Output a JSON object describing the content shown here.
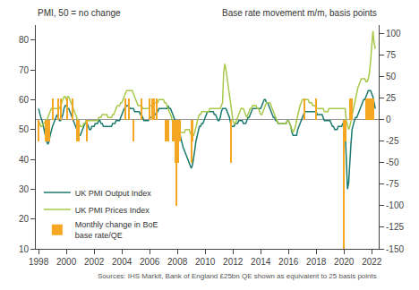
{
  "chart_data": {
    "type": "line",
    "ylabel": "PMI, 50 = no change",
    "y2label": "Base rate movement m/m, basis points",
    "annotations": [
      "Sources: IHS Markit, Bank of England £25bn QE shown as equivalent to 25 basis points"
    ],
    "legend": "lower left",
    "grid": false,
    "xlim": [
      1997.8,
      2022.5
    ],
    "xticks": [
      1998,
      2000,
      2002,
      2004,
      2006,
      2008,
      2010,
      2012,
      2014,
      2016,
      2018,
      2020,
      2022
    ],
    "ylim": [
      10,
      85
    ],
    "yticks": [
      10,
      20,
      30,
      40,
      50,
      60,
      70,
      80
    ],
    "y2lim": [
      -150,
      110
    ],
    "y2ticks": [
      -150,
      -125,
      -100,
      -75,
      -50,
      -25,
      0,
      25,
      50,
      75,
      100
    ],
    "x": [
      1998.0,
      1998.083,
      1998.167,
      1998.25,
      1998.333,
      1998.417,
      1998.5,
      1998.583,
      1998.667,
      1998.75,
      1998.833,
      1998.917,
      1999.0,
      1999.083,
      1999.167,
      1999.25,
      1999.333,
      1999.417,
      1999.5,
      1999.583,
      1999.667,
      1999.75,
      1999.833,
      1999.917,
      2000.0,
      2000.083,
      2000.167,
      2000.25,
      2000.333,
      2000.417,
      2000.5,
      2000.583,
      2000.667,
      2000.75,
      2000.833,
      2000.917,
      2001.0,
      2001.083,
      2001.167,
      2001.25,
      2001.333,
      2001.417,
      2001.5,
      2001.583,
      2001.667,
      2001.75,
      2001.833,
      2001.917,
      2002.0,
      2002.083,
      2002.167,
      2002.25,
      2002.333,
      2002.417,
      2002.5,
      2002.583,
      2002.667,
      2002.75,
      2002.833,
      2002.917,
      2003.0,
      2003.083,
      2003.167,
      2003.25,
      2003.333,
      2003.417,
      2003.5,
      2003.583,
      2003.667,
      2003.75,
      2003.833,
      2003.917,
      2004.0,
      2004.083,
      2004.167,
      2004.25,
      2004.333,
      2004.417,
      2004.5,
      2004.583,
      2004.667,
      2004.75,
      2004.833,
      2004.917,
      2005.0,
      2005.083,
      2005.167,
      2005.25,
      2005.333,
      2005.417,
      2005.5,
      2005.583,
      2005.667,
      2005.75,
      2005.833,
      2005.917,
      2006.0,
      2006.083,
      2006.167,
      2006.25,
      2006.333,
      2006.417,
      2006.5,
      2006.583,
      2006.667,
      2006.75,
      2006.833,
      2006.917,
      2007.0,
      2007.083,
      2007.167,
      2007.25,
      2007.333,
      2007.417,
      2007.5,
      2007.583,
      2007.667,
      2007.75,
      2007.833,
      2007.917,
      2008.0,
      2008.083,
      2008.167,
      2008.25,
      2008.333,
      2008.417,
      2008.5,
      2008.583,
      2008.667,
      2008.75,
      2008.833,
      2008.917,
      2009.0,
      2009.083,
      2009.167,
      2009.25,
      2009.333,
      2009.417,
      2009.5,
      2009.583,
      2009.667,
      2009.75,
      2009.833,
      2009.917,
      2010.0,
      2010.083,
      2010.167,
      2010.25,
      2010.333,
      2010.417,
      2010.5,
      2010.583,
      2010.667,
      2010.75,
      2010.833,
      2010.917,
      2011.0,
      2011.083,
      2011.167,
      2011.25,
      2011.333,
      2011.417,
      2011.5,
      2011.583,
      2011.667,
      2011.75,
      2011.833,
      2011.917,
      2012.0,
      2012.083,
      2012.167,
      2012.25,
      2012.333,
      2012.417,
      2012.5,
      2012.583,
      2012.667,
      2012.75,
      2012.833,
      2012.917,
      2013.0,
      2013.083,
      2013.167,
      2013.25,
      2013.333,
      2013.417,
      2013.5,
      2013.583,
      2013.667,
      2013.75,
      2013.833,
      2013.917,
      2014.0,
      2014.083,
      2014.167,
      2014.25,
      2014.333,
      2014.417,
      2014.5,
      2014.583,
      2014.667,
      2014.75,
      2014.833,
      2014.917,
      2015.0,
      2015.083,
      2015.167,
      2015.25,
      2015.333,
      2015.417,
      2015.5,
      2015.583,
      2015.667,
      2015.75,
      2015.833,
      2015.917,
      2016.0,
      2016.083,
      2016.167,
      2016.25,
      2016.333,
      2016.417,
      2016.5,
      2016.583,
      2016.667,
      2016.75,
      2016.833,
      2016.917,
      2017.0,
      2017.083,
      2017.167,
      2017.25,
      2017.333,
      2017.417,
      2017.5,
      2017.583,
      2017.667,
      2017.75,
      2017.833,
      2017.917,
      2018.0,
      2018.083,
      2018.167,
      2018.25,
      2018.333,
      2018.417,
      2018.5,
      2018.583,
      2018.667,
      2018.75,
      2018.833,
      2018.917,
      2019.0,
      2019.083,
      2019.167,
      2019.25,
      2019.333,
      2019.417,
      2019.5,
      2019.583,
      2019.667,
      2019.75,
      2019.833,
      2019.917,
      2020.0,
      2020.083,
      2020.167,
      2020.25,
      2020.333,
      2020.417,
      2020.5,
      2020.583,
      2020.667,
      2020.75,
      2020.833,
      2020.917,
      2021.0,
      2021.083,
      2021.167,
      2021.25,
      2021.333,
      2021.417,
      2021.5,
      2021.583,
      2021.667,
      2021.75,
      2021.833,
      2021.917,
      2022.0,
      2022.083,
      2022.167,
      2022.25
    ],
    "series": [
      {
        "name": "UK PMI Output Index",
        "color": "#1a7a6e",
        "type": "line",
        "values": [
          57,
          55,
          54,
          53,
          51,
          49,
          47,
          46,
          45,
          46,
          48,
          50,
          51,
          52,
          53,
          54,
          55,
          54,
          53,
          53,
          54,
          55,
          57,
          58,
          58,
          57,
          57,
          56,
          55,
          54,
          53,
          52,
          51,
          50,
          49,
          48,
          48,
          49,
          50,
          51,
          52,
          52,
          52,
          51,
          50,
          50,
          51,
          51,
          51,
          52,
          52,
          52,
          53,
          53,
          52,
          52,
          51,
          51,
          51,
          51,
          51,
          51,
          51,
          51,
          52,
          52,
          52,
          53,
          53,
          53,
          53,
          54,
          55,
          56,
          57,
          57,
          58,
          58,
          58,
          57,
          57,
          57,
          57,
          56,
          56,
          56,
          56,
          56,
          55,
          55,
          54,
          53,
          53,
          53,
          53,
          53,
          54,
          54,
          54,
          55,
          55,
          55,
          56,
          56,
          57,
          57,
          57,
          57,
          57,
          57,
          57,
          57,
          58,
          57,
          57,
          56,
          55,
          54,
          53,
          52,
          51,
          50,
          49,
          47,
          45,
          44,
          43,
          42,
          41,
          40,
          39,
          38,
          37,
          38,
          40,
          43,
          46,
          48,
          50,
          51,
          51,
          52,
          52,
          53,
          54,
          55,
          56,
          56,
          56,
          56,
          56,
          56,
          55,
          55,
          54,
          53,
          53,
          54,
          56,
          57,
          57,
          57,
          57,
          56,
          55,
          54,
          52,
          51,
          51,
          51,
          52,
          52,
          52,
          53,
          53,
          53,
          53,
          52,
          52,
          52,
          53,
          54,
          54,
          55,
          56,
          57,
          57,
          57,
          57,
          57,
          57,
          57,
          57,
          58,
          59,
          60,
          60,
          59,
          59,
          58,
          57,
          56,
          55,
          54,
          54,
          53,
          53,
          52,
          52,
          52,
          52,
          52,
          52,
          52,
          52,
          53,
          53,
          52,
          51,
          49,
          48,
          48,
          48,
          48,
          50,
          51,
          52,
          53,
          54,
          55,
          56,
          56,
          56,
          56,
          56,
          56,
          56,
          56,
          56,
          56,
          56,
          55,
          55,
          55,
          55,
          55,
          54,
          53,
          53,
          53,
          53,
          53,
          53,
          52,
          51,
          51,
          50,
          50,
          50,
          51,
          51,
          51,
          51,
          52,
          52,
          50,
          40,
          30,
          32,
          40,
          45,
          50,
          52,
          53,
          54,
          54,
          55,
          56,
          57,
          58,
          59,
          60,
          60,
          61,
          62,
          63,
          63,
          63,
          62,
          61,
          59,
          57
        ]
      },
      {
        "name": "UK PMI Prices Index",
        "color": "#a8c84a",
        "type": "line",
        "values": [
          53,
          52,
          51,
          51,
          52,
          52,
          53,
          53,
          54,
          55,
          56,
          57,
          57,
          57,
          57,
          57,
          57,
          57,
          57,
          58,
          59,
          60,
          61,
          61,
          60,
          61,
          61,
          60,
          59,
          58,
          57,
          56,
          55,
          54,
          53,
          52,
          51,
          51,
          51,
          52,
          52,
          53,
          53,
          53,
          53,
          53,
          53,
          53,
          53,
          53,
          53,
          53,
          54,
          54,
          54,
          55,
          55,
          55,
          55,
          55,
          54,
          54,
          54,
          54,
          55,
          55,
          56,
          57,
          58,
          58,
          58,
          59,
          59,
          60,
          61,
          62,
          63,
          63,
          63,
          63,
          63,
          63,
          62,
          61,
          60,
          59,
          58,
          58,
          58,
          58,
          57,
          57,
          57,
          57,
          57,
          57,
          58,
          58,
          58,
          59,
          59,
          59,
          59,
          59,
          60,
          60,
          60,
          60,
          60,
          59,
          59,
          58,
          57,
          56,
          55,
          54,
          52,
          51,
          50,
          50,
          49,
          49,
          49,
          49,
          49,
          49,
          49,
          50,
          50,
          50,
          50,
          49,
          48,
          48,
          48,
          49,
          51,
          53,
          54,
          55,
          55,
          56,
          56,
          56,
          56,
          56,
          56,
          56,
          57,
          57,
          57,
          57,
          57,
          57,
          57,
          57,
          57,
          57,
          58,
          59,
          69,
          72,
          70,
          67,
          65,
          62,
          59,
          56,
          53,
          52,
          52,
          53,
          54,
          55,
          56,
          57,
          57,
          57,
          56,
          55,
          54,
          55,
          56,
          57,
          57,
          58,
          58,
          58,
          58,
          57,
          57,
          56,
          55,
          55,
          56,
          57,
          58,
          59,
          59,
          59,
          59,
          58,
          57,
          56,
          55,
          54,
          53,
          52,
          52,
          52,
          52,
          52,
          52,
          52,
          52,
          53,
          53,
          52,
          51,
          50,
          49,
          50,
          51,
          53,
          55,
          57,
          58,
          59,
          60,
          60,
          60,
          60,
          60,
          60,
          59,
          59,
          59,
          58,
          58,
          58,
          57,
          57,
          57,
          57,
          57,
          57,
          57,
          56,
          56,
          56,
          56,
          57,
          57,
          57,
          57,
          57,
          57,
          57,
          57,
          57,
          57,
          57,
          57,
          57,
          57,
          57,
          53,
          51,
          50,
          51,
          53,
          55,
          57,
          59,
          61,
          62,
          64,
          65,
          66,
          67,
          67,
          67,
          67,
          66,
          66,
          67,
          69,
          73,
          80,
          83,
          79,
          77
        ]
      },
      {
        "name": "Monthly change in BoE\nbase rate/QE",
        "color": "#f5a623",
        "type": "bar",
        "axis": "y2",
        "values": [
          -25,
          0,
          0,
          0,
          0,
          0,
          -25,
          0,
          -25,
          -25,
          0,
          0,
          25,
          0,
          0,
          0,
          0,
          25,
          0,
          25,
          0,
          0,
          0,
          0,
          0,
          25,
          0,
          0,
          0,
          25,
          0,
          0,
          0,
          -25,
          -25,
          -25,
          0,
          0,
          0,
          0,
          0,
          0,
          -25,
          0,
          0,
          0,
          0,
          0,
          0,
          0,
          0,
          0,
          0,
          0,
          0,
          0,
          0,
          0,
          0,
          0,
          0,
          0,
          0,
          0,
          0,
          0,
          0,
          0,
          0,
          0,
          0,
          0,
          0,
          0,
          0,
          25,
          0,
          0,
          25,
          0,
          0,
          0,
          -25,
          0,
          0,
          0,
          0,
          0,
          0,
          25,
          0,
          0,
          0,
          0,
          0,
          0,
          25,
          0,
          25,
          0,
          25,
          0,
          25,
          0,
          0,
          0,
          0,
          0,
          0,
          0,
          -25,
          -25,
          -25,
          0,
          0,
          0,
          -25,
          -25,
          -50,
          -100,
          -50,
          -50,
          -25,
          0,
          0,
          0,
          0,
          0,
          0,
          0,
          0,
          0,
          -50,
          -25,
          0,
          0,
          0,
          0,
          0,
          0,
          0,
          0,
          0,
          0,
          0,
          0,
          0,
          0,
          0,
          0,
          0,
          0,
          0,
          0,
          0,
          0,
          0,
          0,
          0,
          0,
          0,
          0,
          0,
          0,
          0,
          0,
          -50,
          0,
          0,
          0,
          0,
          0,
          0,
          0,
          0,
          0,
          0,
          0,
          0,
          0,
          0,
          0,
          0,
          0,
          0,
          0,
          0,
          0,
          0,
          0,
          0,
          0,
          0,
          0,
          0,
          0,
          0,
          0,
          0,
          0,
          0,
          0,
          0,
          0,
          0,
          0,
          0,
          0,
          0,
          0,
          0,
          0,
          0,
          0,
          0,
          0,
          0,
          0,
          0,
          0,
          0,
          0,
          0,
          0,
          0,
          0,
          0,
          0,
          0,
          0,
          25,
          0,
          0,
          0,
          0,
          0,
          0,
          0,
          0,
          0,
          25,
          0,
          0,
          0,
          0,
          0,
          0,
          0,
          0,
          0,
          0,
          0,
          0,
          0,
          0,
          0,
          0,
          0,
          0,
          0,
          0,
          0,
          0,
          0,
          -150,
          -25,
          0,
          0,
          0,
          25,
          0,
          25,
          0,
          0,
          0,
          0,
          0,
          0,
          0,
          0,
          0,
          0,
          0,
          25,
          0,
          25,
          25,
          25,
          25,
          25,
          0,
          0
        ]
      }
    ]
  }
}
